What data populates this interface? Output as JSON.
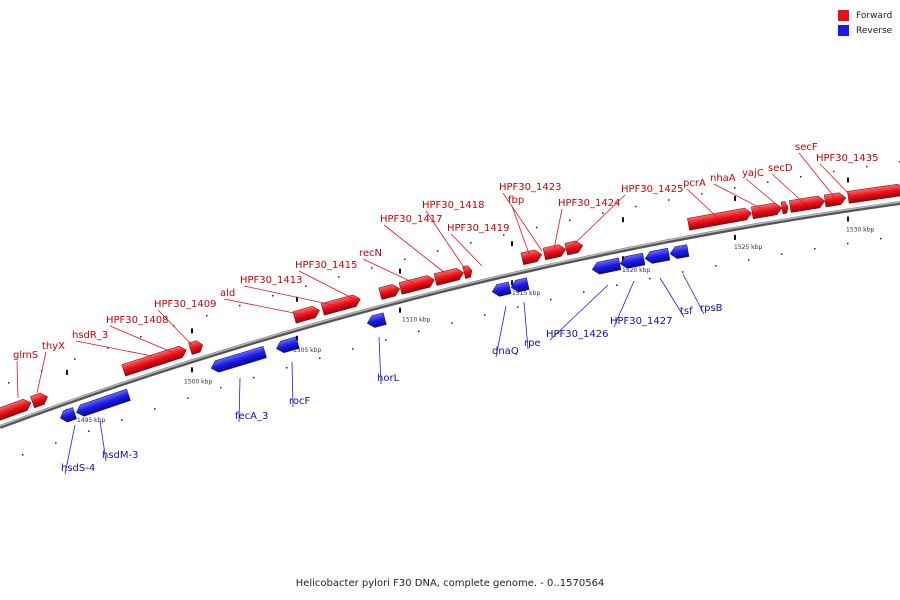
{
  "legend": {
    "forward_label": "Forward",
    "reverse_label": "Reverse",
    "forward_color": "#e8111a",
    "reverse_color": "#1a1ae6"
  },
  "caption": "Helicobacter pylori F30 DNA, complete genome. - 0..1570564",
  "scale": {
    "ticks": [
      {
        "label": "1495 kbp"
      },
      {
        "label": "1500 kbp"
      },
      {
        "label": "1505 kbp"
      },
      {
        "label": "1510 kbp"
      },
      {
        "label": "1515 kbp"
      },
      {
        "label": "1520 kbp"
      },
      {
        "label": "1525 kbp"
      },
      {
        "label": "1530 kbp"
      }
    ]
  },
  "genes": [
    {
      "name": "glmS",
      "strand": "forward"
    },
    {
      "name": "thyX",
      "strand": "forward"
    },
    {
      "name": "hsdR_3",
      "strand": "forward"
    },
    {
      "name": "HPF30_1408",
      "strand": "forward"
    },
    {
      "name": "HPF30_1409",
      "strand": "forward"
    },
    {
      "name": "ald",
      "strand": "forward"
    },
    {
      "name": "HPF30_1413",
      "strand": "forward"
    },
    {
      "name": "HPF30_1415",
      "strand": "forward"
    },
    {
      "name": "recN",
      "strand": "forward"
    },
    {
      "name": "HPF30_1417",
      "strand": "forward"
    },
    {
      "name": "HPF30_1418",
      "strand": "forward"
    },
    {
      "name": "HPF30_1419",
      "strand": "forward"
    },
    {
      "name": "fbp",
      "strand": "forward"
    },
    {
      "name": "HPF30_1423",
      "strand": "forward"
    },
    {
      "name": "HPF30_1424",
      "strand": "forward"
    },
    {
      "name": "HPF30_1425",
      "strand": "forward"
    },
    {
      "name": "pcrA",
      "strand": "forward"
    },
    {
      "name": "nhaA",
      "strand": "forward"
    },
    {
      "name": "yajC",
      "strand": "forward"
    },
    {
      "name": "secD",
      "strand": "forward"
    },
    {
      "name": "secF",
      "strand": "forward"
    },
    {
      "name": "HPF30_1435",
      "strand": "forward"
    },
    {
      "name": "hsdS-4",
      "strand": "reverse"
    },
    {
      "name": "hsdM-3",
      "strand": "reverse"
    },
    {
      "name": "fecA_3",
      "strand": "reverse"
    },
    {
      "name": "rocF",
      "strand": "reverse"
    },
    {
      "name": "horL",
      "strand": "reverse"
    },
    {
      "name": "dnaQ",
      "strand": "reverse"
    },
    {
      "name": "rpe",
      "strand": "reverse"
    },
    {
      "name": "HPF30_1426",
      "strand": "reverse"
    },
    {
      "name": "HPF30_1427",
      "strand": "reverse"
    },
    {
      "name": "tsf",
      "strand": "reverse"
    },
    {
      "name": "rpsB",
      "strand": "reverse"
    }
  ]
}
